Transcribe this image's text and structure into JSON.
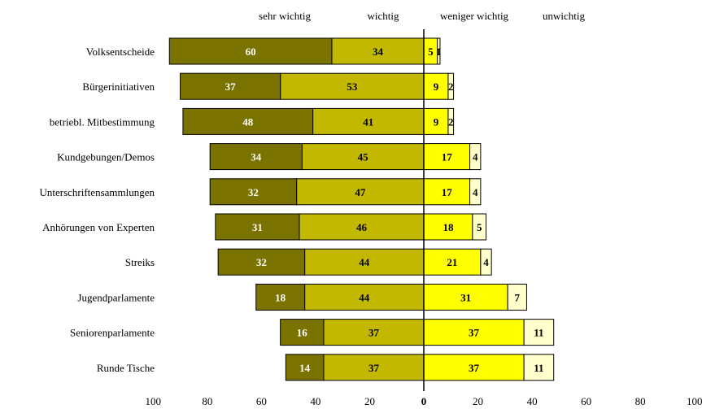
{
  "chart_data": {
    "type": "bar",
    "subtype": "diverging-stacked-horizontal",
    "legend": [
      "sehr wichtig",
      "wichtig",
      "weniger wichtig",
      "unwichtig"
    ],
    "legend_placement": "top",
    "categories": [
      "Volksentscheide",
      "Bürgerinitiativen",
      "betriebl. Mitbestimmung",
      "Kundgebungen/Demos",
      "Unterschriftensammlungen",
      "Anhörungen von Experten",
      "Streiks",
      "Jugendparlamente",
      "Seniorenparlamente",
      "Runde Tische"
    ],
    "series": [
      {
        "name": "sehr wichtig",
        "side": "negative",
        "color": "#7b7300",
        "label_color": "#ffffff",
        "values": [
          60,
          37,
          48,
          34,
          32,
          31,
          32,
          18,
          16,
          14
        ]
      },
      {
        "name": "wichtig",
        "side": "negative",
        "color": "#c2b800",
        "label_color": "#000000",
        "values": [
          34,
          53,
          41,
          45,
          47,
          46,
          44,
          44,
          37,
          37
        ]
      },
      {
        "name": "weniger wichtig",
        "side": "positive",
        "color": "#ffff00",
        "label_color": "#000000",
        "values": [
          5,
          9,
          9,
          17,
          17,
          18,
          21,
          31,
          37,
          37
        ]
      },
      {
        "name": "unwichtig",
        "side": "positive",
        "color": "#ffffcc",
        "label_color": "#000000",
        "values": [
          1,
          2,
          2,
          4,
          4,
          5,
          4,
          7,
          11,
          11
        ]
      }
    ],
    "x_ticks": [
      "100",
      "80",
      "60",
      "40",
      "20",
      "0",
      "20",
      "40",
      "60",
      "80",
      "100"
    ],
    "xlim": [
      -100,
      100
    ],
    "grid": false
  }
}
